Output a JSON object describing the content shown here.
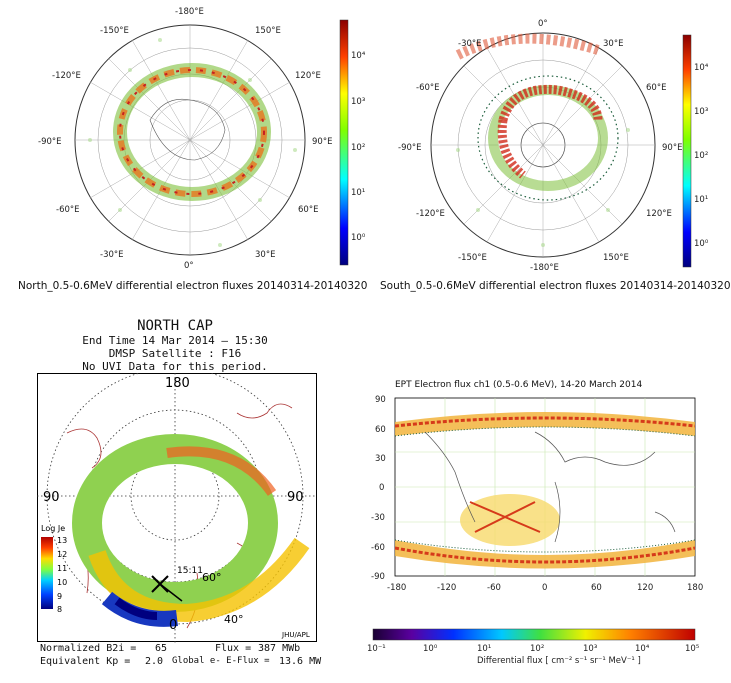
{
  "north_map": {
    "lon_labels": [
      "-180°E",
      "150°E",
      "-150°E",
      "120°E",
      "-120°E",
      "90°E",
      "-90°E",
      "60°E",
      "-60°E",
      "30°E",
      "-30°E",
      "0°"
    ],
    "colorbar_ticks": [
      "10⁴",
      "10³",
      "10²",
      "10¹",
      "10⁰"
    ],
    "caption": "North_0.5-0.6MeV differential electron fluxes 20140314-20140320"
  },
  "south_map": {
    "lon_labels": [
      "0°",
      "-30°E",
      "30°E",
      "-60°E",
      "60°E",
      "-90°E",
      "90°E",
      "-120°E",
      "120°E",
      "-150°E",
      "150°E",
      "-180°E"
    ],
    "colorbar_ticks": [
      "10⁴",
      "10³",
      "10²",
      "10¹",
      "10⁰"
    ],
    "caption": "South_0.5-0.6MeV differential electron fluxes 20140314-20140320"
  },
  "north_cap": {
    "title": "NORTH CAP",
    "end_time": "End Time 14 Mar 2014 – 15:30",
    "satellite": "DMSP Satellite : F16",
    "uvi_note": "No UVI Data for this period.",
    "axis_labels": {
      "top": "180",
      "left": "90",
      "right": "90",
      "bottom": "0"
    },
    "ring_labels": [
      "60°",
      "40°"
    ],
    "time_label": "15:11",
    "legend_title": "Log Je",
    "legend_ticks": [
      "13",
      "12",
      "11",
      "10",
      "9",
      "8"
    ],
    "credit": "JHU/APL",
    "footer": {
      "normalized_b2i_label": "Normalized B2i =",
      "normalized_b2i_value": "65",
      "flux_label": "Flux =",
      "flux_value": "387 MWb",
      "kp_label": "Equivalent Kp =",
      "kp_value": "2.0",
      "global_label": "Global e- E-Flux =",
      "global_value": "13.6 MW"
    }
  },
  "ept_map": {
    "title": "EPT Electron flux ch1 (0.5-0.6 MeV), 14-20 March 2014",
    "y_ticks": [
      "90",
      "60",
      "30",
      "0",
      "-30",
      "-60",
      "-90"
    ],
    "x_ticks": [
      "-180",
      "-120",
      "-60",
      "0",
      "60",
      "120",
      "180"
    ],
    "colorbar_ticks": [
      "10⁻¹",
      "10⁰",
      "10¹",
      "10²",
      "10³",
      "10⁴",
      "10⁵"
    ],
    "colorbar_label": "Differential flux [ cm⁻² s⁻¹ sr⁻¹ MeV⁻¹ ]"
  },
  "colors": {
    "jet_high": "#8b0000",
    "jet_low": "#00007f",
    "ring_green": "#7dbf3a",
    "coast": "#a33"
  }
}
